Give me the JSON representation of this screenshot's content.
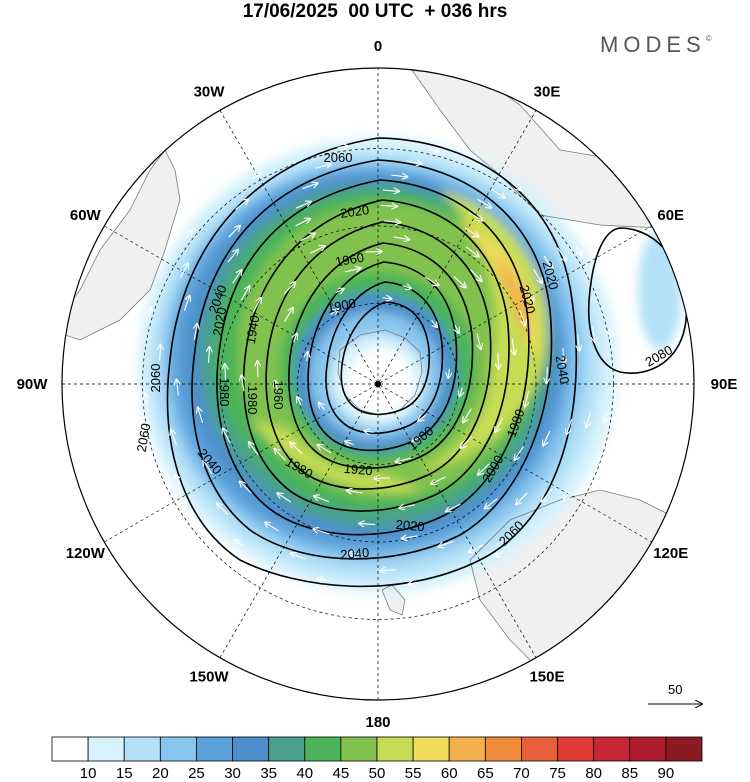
{
  "title": "17/06/2025  00 UTC  + 036 hrs",
  "brand": "MODES",
  "brand_mark": "©",
  "map": {
    "projection": "polar-stereographic-south",
    "meridian_labels": [
      {
        "text": "0",
        "lon": 0
      },
      {
        "text": "30E",
        "lon": 30
      },
      {
        "text": "60E",
        "lon": 60
      },
      {
        "text": "90E",
        "lon": 90
      },
      {
        "text": "120E",
        "lon": 120
      },
      {
        "text": "150E",
        "lon": 150
      },
      {
        "text": "180",
        "lon": 180
      },
      {
        "text": "150W",
        "lon": -150
      },
      {
        "text": "120W",
        "lon": -120
      },
      {
        "text": "90W",
        "lon": -90
      },
      {
        "text": "60W",
        "lon": -60
      },
      {
        "text": "30W",
        "lon": -30
      }
    ],
    "contour_labels": [
      "2060",
      "2020",
      "1960",
      "1900",
      "2020",
      "1940",
      "2020",
      "2060",
      "1980",
      "1980",
      "2060",
      "2040",
      "1980",
      "1920",
      "1900",
      "1980",
      "2000",
      "2020",
      "2040",
      "2060",
      "2040",
      "2020",
      "2040",
      "2080",
      "1960"
    ],
    "vector_reference": "50",
    "colors": {
      "continent": "#f0f0f0",
      "coast": "#7a7a7a",
      "contour": "#000000",
      "arrow": "#ffffff"
    }
  },
  "colorbar": {
    "labels": [
      "10",
      "15",
      "20",
      "25",
      "30",
      "35",
      "40",
      "45",
      "50",
      "55",
      "60",
      "65",
      "70",
      "75",
      "80",
      "85",
      "90"
    ],
    "colors": [
      "#ffffff",
      "#d6f2fc",
      "#b4e1f8",
      "#88c5ee",
      "#5ca2da",
      "#4d8fca",
      "#4aa08e",
      "#4bb35a",
      "#80c24d",
      "#c6dc55",
      "#f3dc5c",
      "#f3b24d",
      "#ef8a3a",
      "#e8603a",
      "#df3a35",
      "#c82634",
      "#ad1d2c",
      "#8c1a22"
    ]
  }
}
